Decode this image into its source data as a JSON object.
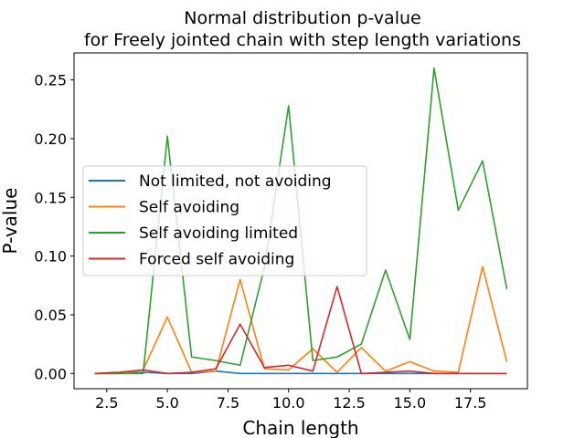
{
  "chart_data": {
    "type": "line",
    "title_lines": [
      "Normal distribution p-value",
      "for Freely jointed chain with step length variations"
    ],
    "xlabel": "Chain length",
    "ylabel": "P-value",
    "xlim": [
      1.15,
      19.85
    ],
    "ylim": [
      -0.013,
      0.273
    ],
    "xticks": [
      2.5,
      5.0,
      7.5,
      10.0,
      12.5,
      15.0,
      17.5
    ],
    "xtick_labels": [
      "2.5",
      "5.0",
      "7.5",
      "10.0",
      "12.5",
      "15.0",
      "17.5"
    ],
    "yticks": [
      0.0,
      0.05,
      0.1,
      0.15,
      0.2,
      0.25
    ],
    "ytick_labels": [
      "0.00",
      "0.05",
      "0.10",
      "0.15",
      "0.20",
      "0.25"
    ],
    "grid": false,
    "legend_position": "center-left",
    "x": [
      2,
      3,
      4,
      5,
      6,
      7,
      8,
      9,
      10,
      11,
      12,
      13,
      14,
      15,
      16,
      17,
      18,
      19
    ],
    "series": [
      {
        "name": "Not limited, not avoiding",
        "color": "#1f77b4",
        "values": [
          0.0,
          0.0,
          0.001,
          0.0,
          0.0,
          0.002,
          0.0,
          0.0,
          0.0,
          0.0,
          0.0,
          0.0,
          0.0,
          0.0,
          0.0,
          0.0,
          0.0,
          0.0
        ]
      },
      {
        "name": "Self avoiding",
        "color": "#ff7f0e",
        "values": [
          0.0,
          0.0,
          0.003,
          0.048,
          0.001,
          0.002,
          0.08,
          0.004,
          0.003,
          0.021,
          0.001,
          0.022,
          0.002,
          0.01,
          0.002,
          0.001,
          0.091,
          0.01
        ]
      },
      {
        "name": "Self avoiding limited",
        "color": "#2ca02c",
        "values": [
          0.0,
          0.0,
          0.0,
          0.202,
          0.014,
          0.011,
          0.007,
          0.09,
          0.228,
          0.011,
          0.014,
          0.025,
          0.088,
          0.029,
          0.26,
          0.139,
          0.181,
          0.072
        ]
      },
      {
        "name": "Forced self avoiding",
        "color": "#d62728",
        "values": [
          0.0,
          0.001,
          0.003,
          0.0,
          0.001,
          0.004,
          0.042,
          0.005,
          0.007,
          0.002,
          0.074,
          0.0,
          0.001,
          0.002,
          0.0,
          0.0,
          0.0,
          0.0
        ]
      }
    ]
  }
}
